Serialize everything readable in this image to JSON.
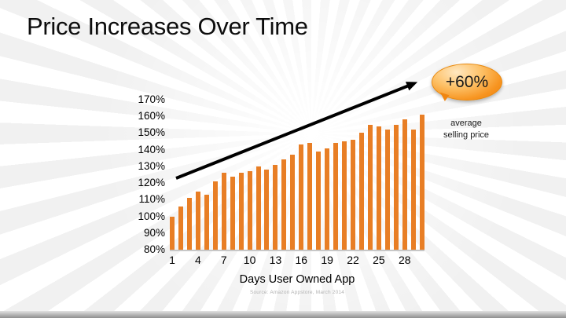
{
  "slide": {
    "title": "Price Increases Over Time",
    "source": "Source:  Amazon Appstore, March 2014",
    "callout": {
      "value": "+60%",
      "caption": "average\nselling price"
    }
  },
  "chart_data": {
    "type": "bar",
    "title": "Price Increases Over Time",
    "xlabel": "Days User Owned App",
    "ylabel": "",
    "ylim": [
      80,
      170
    ],
    "ytick_step": 10,
    "ytick_suffix": "%",
    "xticks": [
      1,
      4,
      7,
      10,
      13,
      16,
      19,
      22,
      25,
      28
    ],
    "x": [
      1,
      2,
      3,
      4,
      5,
      6,
      7,
      8,
      9,
      10,
      11,
      12,
      13,
      14,
      15,
      16,
      17,
      18,
      19,
      20,
      21,
      22,
      23,
      24,
      25,
      26,
      27,
      28,
      29,
      30
    ],
    "values": [
      100,
      106,
      111,
      115,
      113,
      121,
      126,
      124,
      126,
      127,
      130,
      128,
      131,
      134,
      137,
      143,
      144,
      139,
      141,
      144,
      145,
      146,
      150,
      155,
      154,
      152,
      155,
      158,
      152,
      161
    ],
    "bar_color": "#E87E25",
    "grid": false,
    "legend": false,
    "annotations": [
      "upward trend arrow",
      "+60% average selling price"
    ]
  }
}
